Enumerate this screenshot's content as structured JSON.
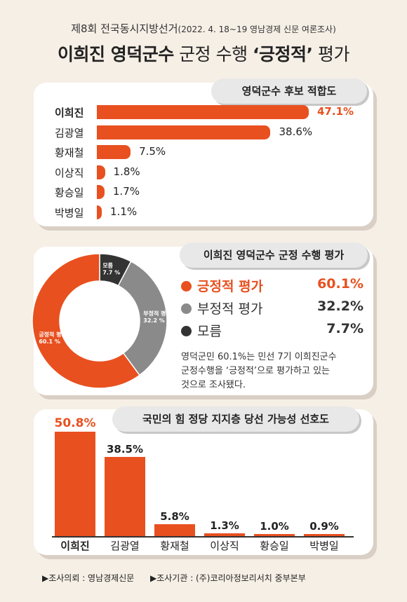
{
  "header": {
    "subtitle_main": "제8회 전국동시지방선거",
    "subtitle_small": "(2022. 4. 18~19 영남경제 신문 여론조사)",
    "title_bold": "이희진 영덕군수",
    "title_mid": " 군정 수행 ",
    "title_quote": "‘긍정적’",
    "title_end": " 평가"
  },
  "chart_data": [
    {
      "type": "bar",
      "orientation": "horizontal",
      "title": "영덕군수 후보 적합도",
      "categories": [
        "이희진",
        "김광열",
        "황재철",
        "이상직",
        "황승일",
        "박병일"
      ],
      "values": [
        47.1,
        38.6,
        7.5,
        1.8,
        1.7,
        1.1
      ],
      "labels": [
        "47.1%",
        "38.6%",
        "7.5%",
        "1.8%",
        "1.7%",
        "1.1%"
      ],
      "highlight": "이희진",
      "color": "#e8501f"
    },
    {
      "type": "pie",
      "title": "이희진 영덕군수 군정 수행 평가",
      "slices": [
        {
          "name": "긍정적 평가",
          "value": 60.1,
          "label": "60.1%",
          "inner_label": "긍정적 평가",
          "inner_value": "60.1 %",
          "color": "#e8501f"
        },
        {
          "name": "부정적 평가",
          "value": 32.2,
          "label": "32.2%",
          "inner_label": "부정적 평가",
          "inner_value": "32.2 %",
          "color": "#8a8a8a"
        },
        {
          "name": "모름",
          "value": 7.7,
          "label": "7.7%",
          "inner_label": "모름",
          "inner_value": "7.7 %",
          "color": "#333333"
        }
      ],
      "description": [
        "영덕군민 60.1%는 민선 7기 이희진군수",
        "군정수행을 ‘긍정적’으로 평가하고 있는",
        "것으로 조사됐다."
      ]
    },
    {
      "type": "bar",
      "orientation": "vertical",
      "title": "국민의 힘 정당 지지층 당선 가능성 선호도",
      "categories": [
        "이희진",
        "김광열",
        "황재철",
        "이상직",
        "황승일",
        "박병일"
      ],
      "values": [
        50.8,
        38.5,
        5.8,
        1.3,
        1.0,
        0.9
      ],
      "labels": [
        "50.8%",
        "38.5%",
        "5.8%",
        "1.3%",
        "1.0%",
        "0.9%"
      ],
      "highlight": "이희진",
      "color": "#e8501f"
    }
  ],
  "footer": {
    "left": "▶조사의뢰 : 영남경제신문",
    "right": "▶조사기관 : (주)코리아정보리서치 중부본부"
  }
}
